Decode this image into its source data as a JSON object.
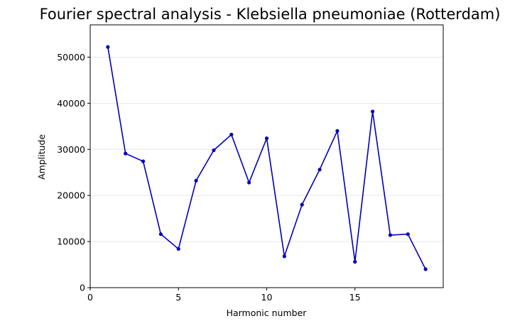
{
  "chart_data": {
    "type": "line",
    "title": "Fourier spectral analysis - Klebsiella pneumoniae (Rotterdam)",
    "xlabel": "Harmonic number",
    "ylabel": "Amplitude",
    "xlim": [
      0,
      20
    ],
    "ylim": [
      0,
      57000
    ],
    "xticks": [
      0,
      5,
      10,
      15
    ],
    "yticks": [
      0,
      10000,
      20000,
      30000,
      40000,
      50000
    ],
    "grid": "horizontal",
    "line_color": "#0000bb",
    "series": [
      {
        "x": [
          1,
          2,
          3,
          4,
          5,
          6,
          7,
          8,
          9,
          10,
          11,
          12,
          13,
          14,
          15,
          16,
          17,
          18,
          19
        ],
        "values": [
          52200,
          29100,
          27400,
          11600,
          8400,
          23200,
          29800,
          33200,
          22800,
          32400,
          6800,
          18000,
          25600,
          34000,
          5600,
          38200,
          11400,
          11600,
          4000
        ]
      }
    ]
  }
}
